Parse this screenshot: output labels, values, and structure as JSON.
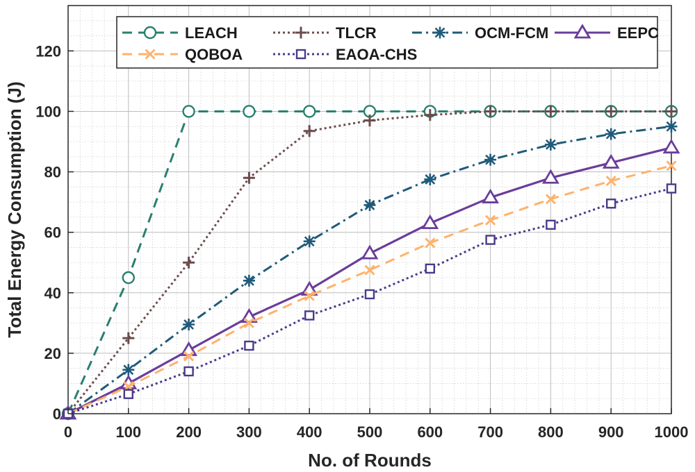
{
  "chart_data": {
    "type": "line",
    "title": "",
    "xlabel": "No. of Rounds",
    "ylabel": "Total Energy Consumption (J)",
    "x": [
      0,
      100,
      200,
      300,
      400,
      500,
      600,
      700,
      800,
      900,
      1000
    ],
    "xlim": [
      0,
      1000
    ],
    "ylim": [
      0,
      135
    ],
    "xticks": [
      "0",
      "100",
      "200",
      "300",
      "400",
      "500",
      "600",
      "700",
      "800",
      "900",
      "1000"
    ],
    "yticks": [
      0,
      20,
      40,
      60,
      80,
      100,
      120
    ],
    "grid": true,
    "legend_position": "top",
    "series": [
      {
        "name": "LEACH",
        "color": "#2a7f6f",
        "marker": "circle",
        "dash": "dashed",
        "values": [
          0,
          45,
          100,
          100,
          100,
          100,
          100,
          100,
          100,
          100,
          100
        ]
      },
      {
        "name": "TLCR",
        "color": "#6b4c4c",
        "marker": "plus",
        "dash": "dotted",
        "values": [
          0,
          25,
          50,
          78,
          93.5,
          97,
          98.8,
          100,
          100,
          100,
          100
        ]
      },
      {
        "name": "OCM-FCM",
        "color": "#1f5a7a",
        "marker": "asterisk",
        "dash": "dashdot",
        "values": [
          0,
          14.5,
          29.5,
          44,
          57,
          69,
          77.5,
          84,
          89,
          92.5,
          95
        ]
      },
      {
        "name": "EEPC",
        "color": "#6a3d9a",
        "marker": "triangle",
        "dash": "solid",
        "values": [
          0,
          10,
          21,
          32,
          41,
          53,
          63,
          71.5,
          78,
          83,
          88
        ]
      },
      {
        "name": "QOBOA",
        "color": "#ffb26b",
        "marker": "x",
        "dash": "dashed",
        "values": [
          0,
          9,
          19,
          30,
          39,
          47.5,
          56.5,
          64,
          71,
          77,
          82
        ]
      },
      {
        "name": "EAOA-CHS",
        "color": "#4a3a8a",
        "marker": "square",
        "dash": "dotted",
        "values": [
          0,
          6.5,
          14,
          22.5,
          32.5,
          39.5,
          48,
          57.5,
          62.5,
          69.5,
          74.5
        ]
      }
    ]
  }
}
